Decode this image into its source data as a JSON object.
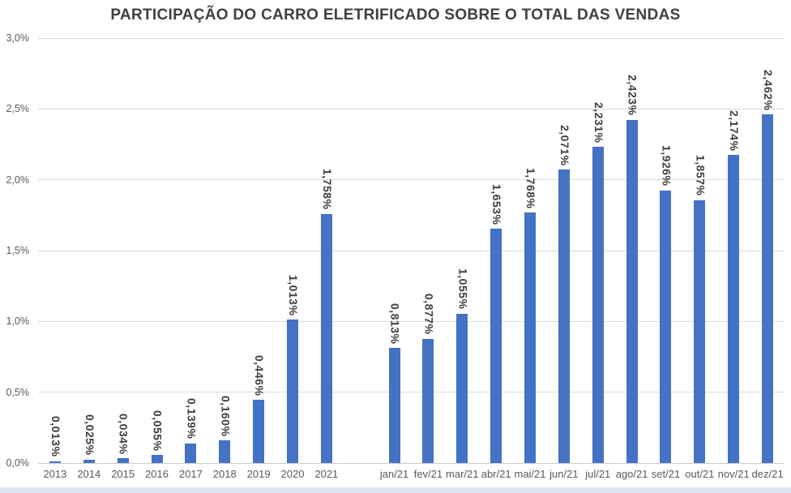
{
  "chart_data": {
    "type": "bar",
    "title": "PARTICIPAÇÃO DO CARRO ELETRIFICADO SOBRE O TOTAL DAS VENDAS",
    "xlabel": "",
    "ylabel": "",
    "ylim": [
      0,
      3
    ],
    "grid": true,
    "legend": false,
    "gap_slots_between_groups": 1,
    "colors": {
      "bar": "#4472C4",
      "value_label": "#3F3F3F",
      "axis_label": "#595959",
      "gridline": "#D9D9D9",
      "axis_line": "#C9C9C9",
      "title": "#404040",
      "footer_strip": "#DCE6F2"
    },
    "yticks": [
      {
        "value": 3.0,
        "label": "3,0%"
      },
      {
        "value": 2.5,
        "label": "2,5%"
      },
      {
        "value": 2.0,
        "label": "2,0%"
      },
      {
        "value": 1.5,
        "label": "1,5%"
      },
      {
        "value": 1.0,
        "label": "1,0%"
      },
      {
        "value": 0.5,
        "label": "0,5%"
      },
      {
        "value": 0.0,
        "label": "0,0%"
      }
    ],
    "groups": [
      {
        "name": "annual",
        "points": [
          {
            "category": "2013",
            "value": 0.013,
            "label": "0,013%"
          },
          {
            "category": "2014",
            "value": 0.025,
            "label": "0,025%"
          },
          {
            "category": "2015",
            "value": 0.034,
            "label": "0,034%"
          },
          {
            "category": "2016",
            "value": 0.055,
            "label": "0,055%"
          },
          {
            "category": "2017",
            "value": 0.139,
            "label": "0,139%"
          },
          {
            "category": "2018",
            "value": 0.16,
            "label": "0,160%"
          },
          {
            "category": "2019",
            "value": 0.446,
            "label": "0,446%"
          },
          {
            "category": "2020",
            "value": 1.013,
            "label": "1,013%"
          },
          {
            "category": "2021",
            "value": 1.758,
            "label": "1,758%"
          }
        ]
      },
      {
        "name": "monthly-2021",
        "points": [
          {
            "category": "jan/21",
            "value": 0.813,
            "label": "0,813%"
          },
          {
            "category": "fev/21",
            "value": 0.877,
            "label": "0,877%"
          },
          {
            "category": "mar/21",
            "value": 1.055,
            "label": "1,055%"
          },
          {
            "category": "abr/21",
            "value": 1.653,
            "label": "1,653%"
          },
          {
            "category": "mai/21",
            "value": 1.768,
            "label": "1,768%"
          },
          {
            "category": "jun/21",
            "value": 2.071,
            "label": "2,071%"
          },
          {
            "category": "jul/21",
            "value": 2.231,
            "label": "2,231%"
          },
          {
            "category": "ago/21",
            "value": 2.423,
            "label": "2,423%"
          },
          {
            "category": "set/21",
            "value": 1.926,
            "label": "1,926%"
          },
          {
            "category": "out/21",
            "value": 1.857,
            "label": "1,857%"
          },
          {
            "category": "nov/21",
            "value": 2.174,
            "label": "2,174%"
          },
          {
            "category": "dez/21",
            "value": 2.462,
            "label": "2,462%"
          }
        ]
      }
    ]
  }
}
